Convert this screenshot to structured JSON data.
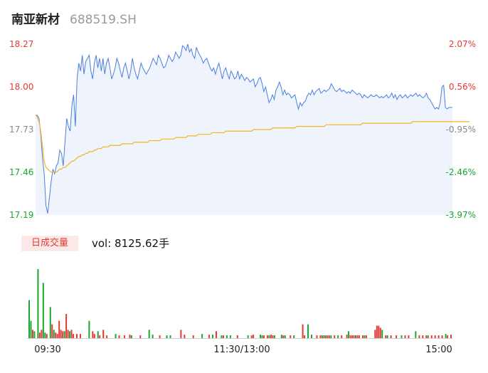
{
  "header": {
    "name": "南亚新材",
    "code": "688519.SH"
  },
  "volume_panel": {
    "tag": "日成交量",
    "readout": "vol: 8125.62手"
  },
  "colors": {
    "up": "#e53935",
    "down": "#1aa632",
    "price_line": "#4a7fe0",
    "avg_line": "#f5b324",
    "area": "#eef3fc",
    "neutral": "#888888"
  },
  "chart_data": [
    {
      "type": "line",
      "name": "intraday-price",
      "y_left_ticks": [
        "18.27",
        "18.00",
        "17.73",
        "17.46",
        "17.19"
      ],
      "y_right_ticks": [
        "2.07%",
        "0.56%",
        "-0.95%",
        "-2.46%",
        "-3.97%"
      ],
      "ylim": [
        17.19,
        18.27
      ],
      "prev_close": 17.9,
      "x_ticks": [
        "09:30",
        "11:30/13:00",
        "15:00"
      ],
      "minutes_total": 240,
      "price": [
        17.82,
        17.82,
        17.8,
        17.7,
        17.55,
        17.45,
        17.25,
        17.2,
        17.3,
        17.4,
        17.48,
        17.45,
        17.5,
        17.52,
        17.6,
        17.58,
        17.5,
        17.65,
        17.8,
        17.75,
        17.72,
        17.88,
        17.95,
        17.75,
        18.05,
        18.15,
        18.1,
        18.2,
        18.08,
        18.16,
        18.18,
        18.2,
        18.1,
        18.05,
        18.15,
        18.2,
        18.12,
        18.18,
        18.1,
        18.18,
        18.08,
        18.15,
        18.18,
        18.12,
        18.05,
        18.08,
        18.12,
        18.18,
        18.15,
        18.1,
        18.06,
        18.12,
        18.15,
        18.1,
        18.05,
        18.1,
        18.18,
        18.12,
        18.08,
        18.05,
        18.1,
        18.15,
        18.12,
        18.1,
        18.08,
        18.1,
        18.12,
        18.15,
        18.18,
        18.16,
        18.14,
        18.2,
        18.18,
        18.15,
        18.12,
        18.13,
        18.16,
        18.2,
        18.18,
        18.16,
        18.18,
        18.22,
        18.2,
        18.18,
        18.2,
        18.26,
        18.25,
        18.23,
        18.27,
        18.22,
        18.24,
        18.2,
        18.18,
        18.25,
        18.22,
        18.2,
        18.18,
        18.15,
        18.17,
        18.18,
        18.15,
        18.12,
        18.1,
        18.12,
        18.08,
        18.12,
        18.15,
        18.1,
        18.05,
        18.1,
        18.12,
        18.08,
        18.05,
        18.1,
        18.08,
        18.05,
        18.06,
        18.1,
        18.05,
        18.08,
        18.06,
        18.04,
        18.06,
        18.05,
        18.03,
        18.04,
        18.05,
        18.0,
        18.02,
        18.05,
        18.06,
        18.02,
        17.97,
        18.0,
        17.95,
        17.9,
        17.92,
        17.95,
        17.92,
        17.98,
        18.0,
        18.03,
        18.0,
        17.95,
        17.98,
        17.95,
        17.96,
        17.95,
        17.93,
        17.94,
        17.95,
        17.9,
        17.86,
        17.9,
        17.88,
        17.9,
        17.91,
        17.94,
        17.96,
        17.95,
        17.98,
        17.95,
        17.97,
        17.98,
        17.99,
        17.96,
        17.97,
        17.98,
        17.97,
        17.98,
        17.99,
        18.02,
        18.0,
        17.98,
        17.97,
        17.98,
        17.99,
        17.97,
        17.98,
        17.97,
        17.96,
        17.97,
        17.96,
        17.98,
        17.97,
        17.96,
        17.95,
        17.96,
        17.95,
        17.93,
        17.95,
        17.94,
        17.93,
        17.94,
        17.95,
        17.94,
        17.94,
        17.95,
        17.94,
        17.93,
        17.94,
        17.93,
        17.94,
        17.95,
        17.93,
        17.94,
        17.96,
        17.93,
        17.95,
        17.92,
        17.94,
        17.95,
        17.93,
        17.94,
        17.95,
        17.93,
        17.94,
        17.95,
        17.94,
        17.95,
        17.96,
        17.94,
        17.95,
        17.94,
        17.93,
        17.94,
        17.96,
        17.93,
        17.92,
        17.9,
        17.88,
        17.86,
        17.87,
        17.86,
        17.9,
        18.0,
        18.01,
        17.87,
        17.86,
        17.87,
        17.87,
        17.87
      ],
      "avg": [
        17.82,
        17.81,
        17.78,
        17.72,
        17.62,
        17.53,
        17.49,
        17.48,
        17.47,
        17.46,
        17.46,
        17.46,
        17.46,
        17.47,
        17.48,
        17.48,
        17.49,
        17.49,
        17.5,
        17.51,
        17.52,
        17.53,
        17.53,
        17.54,
        17.55,
        17.56,
        17.56,
        17.57,
        17.57,
        17.58,
        17.58,
        17.59,
        17.59,
        17.59,
        17.6,
        17.6,
        17.61,
        17.61,
        17.61,
        17.62,
        17.62,
        17.62,
        17.62,
        17.63,
        17.63,
        17.63,
        17.63,
        17.63,
        17.63,
        17.63,
        17.64,
        17.64,
        17.64,
        17.64,
        17.64,
        17.64,
        17.64,
        17.65,
        17.65,
        17.65,
        17.65,
        17.65,
        17.65,
        17.65,
        17.65,
        17.65,
        17.66,
        17.66,
        17.66,
        17.66,
        17.66,
        17.66,
        17.66,
        17.67,
        17.67,
        17.67,
        17.67,
        17.67,
        17.67,
        17.67,
        17.67,
        17.68,
        17.68,
        17.68,
        17.68,
        17.68,
        17.68,
        17.68,
        17.69,
        17.69,
        17.69,
        17.69,
        17.69,
        17.69,
        17.7,
        17.7,
        17.7,
        17.7,
        17.7,
        17.7,
        17.7,
        17.7,
        17.71,
        17.71,
        17.71,
        17.71,
        17.71,
        17.71,
        17.71,
        17.71,
        17.72,
        17.72,
        17.72,
        17.72,
        17.72,
        17.72,
        17.72,
        17.72,
        17.72,
        17.72,
        17.72,
        17.72,
        17.72,
        17.72,
        17.72,
        17.72,
        17.73,
        17.73,
        17.73,
        17.73,
        17.73,
        17.73,
        17.73,
        17.73,
        17.73,
        17.73,
        17.73,
        17.74,
        17.74,
        17.74,
        17.74,
        17.74,
        17.74,
        17.74,
        17.74,
        17.74,
        17.74,
        17.74,
        17.74,
        17.74,
        17.74,
        17.75,
        17.75,
        17.75,
        17.75,
        17.75,
        17.75,
        17.75,
        17.75,
        17.75,
        17.75,
        17.75,
        17.75,
        17.75,
        17.75,
        17.75,
        17.75,
        17.75,
        17.76,
        17.76,
        17.76,
        17.76,
        17.76,
        17.76,
        17.76,
        17.76,
        17.76,
        17.76,
        17.76,
        17.76,
        17.76,
        17.76,
        17.76,
        17.76,
        17.76,
        17.76,
        17.76,
        17.76,
        17.76,
        17.77,
        17.77,
        17.77,
        17.77,
        17.77,
        17.77,
        17.77,
        17.77,
        17.77,
        17.77,
        17.77,
        17.77,
        17.77,
        17.77,
        17.77,
        17.77,
        17.77,
        17.77,
        17.77,
        17.77,
        17.77,
        17.77,
        17.77,
        17.77,
        17.77,
        17.77,
        17.77,
        17.77,
        17.77,
        17.78,
        17.78,
        17.78,
        17.78,
        17.78,
        17.78,
        17.78,
        17.78,
        17.78,
        17.78,
        17.78,
        17.78,
        17.78,
        17.78,
        17.78,
        17.78,
        17.78,
        17.78,
        17.78,
        17.78,
        17.78,
        17.78,
        17.78,
        17.78,
        17.78,
        17.78,
        17.78,
        17.78,
        17.78,
        17.78,
        17.78,
        17.78,
        17.78,
        17.78
      ],
      "grid": false
    },
    {
      "type": "bar",
      "name": "volume",
      "bars": [
        {
          "i": 0,
          "v": 0.55,
          "dir": "down"
        },
        {
          "i": 1,
          "v": 0.25,
          "dir": "down"
        },
        {
          "i": 2,
          "v": 0.12,
          "dir": "up"
        },
        {
          "i": 3,
          "v": 0.1,
          "dir": "down"
        },
        {
          "i": 5,
          "v": 1.0,
          "dir": "down"
        },
        {
          "i": 6,
          "v": 0.08,
          "dir": "up"
        },
        {
          "i": 7,
          "v": 0.12,
          "dir": "up"
        },
        {
          "i": 8,
          "v": 0.8,
          "dir": "down"
        },
        {
          "i": 9,
          "v": 0.08,
          "dir": "down"
        },
        {
          "i": 10,
          "v": 0.06,
          "dir": "up"
        },
        {
          "i": 12,
          "v": 0.45,
          "dir": "down"
        },
        {
          "i": 13,
          "v": 0.2,
          "dir": "up"
        },
        {
          "i": 14,
          "v": 0.12,
          "dir": "down"
        },
        {
          "i": 15,
          "v": 0.08,
          "dir": "up"
        },
        {
          "i": 16,
          "v": 0.06,
          "dir": "up"
        },
        {
          "i": 17,
          "v": 0.25,
          "dir": "up"
        },
        {
          "i": 18,
          "v": 0.12,
          "dir": "up"
        },
        {
          "i": 19,
          "v": 0.1,
          "dir": "up"
        },
        {
          "i": 20,
          "v": 0.1,
          "dir": "down"
        },
        {
          "i": 21,
          "v": 0.35,
          "dir": "up"
        },
        {
          "i": 22,
          "v": 0.12,
          "dir": "up"
        },
        {
          "i": 23,
          "v": 0.1,
          "dir": "down"
        },
        {
          "i": 24,
          "v": 0.12,
          "dir": "up"
        },
        {
          "i": 25,
          "v": 0.06,
          "dir": "up"
        },
        {
          "i": 27,
          "v": 0.06,
          "dir": "up"
        },
        {
          "i": 29,
          "v": 0.06,
          "dir": "up"
        },
        {
          "i": 34,
          "v": 0.25,
          "dir": "down"
        },
        {
          "i": 36,
          "v": 0.1,
          "dir": "up"
        },
        {
          "i": 37,
          "v": 0.06,
          "dir": "up"
        },
        {
          "i": 39,
          "v": 0.1,
          "dir": "down"
        },
        {
          "i": 40,
          "v": 0.04,
          "dir": "up"
        },
        {
          "i": 42,
          "v": 0.12,
          "dir": "up"
        },
        {
          "i": 44,
          "v": 0.04,
          "dir": "up"
        },
        {
          "i": 49,
          "v": 0.06,
          "dir": "down"
        },
        {
          "i": 51,
          "v": 0.04,
          "dir": "up"
        },
        {
          "i": 54,
          "v": 0.04,
          "dir": "up"
        },
        {
          "i": 57,
          "v": 0.05,
          "dir": "up"
        },
        {
          "i": 58,
          "v": 0.04,
          "dir": "down"
        },
        {
          "i": 63,
          "v": 0.04,
          "dir": "up"
        },
        {
          "i": 68,
          "v": 0.12,
          "dir": "down"
        },
        {
          "i": 70,
          "v": 0.05,
          "dir": "down"
        },
        {
          "i": 74,
          "v": 0.04,
          "dir": "up"
        },
        {
          "i": 78,
          "v": 0.04,
          "dir": "down"
        },
        {
          "i": 80,
          "v": 0.04,
          "dir": "down"
        },
        {
          "i": 86,
          "v": 0.12,
          "dir": "up"
        },
        {
          "i": 88,
          "v": 0.05,
          "dir": "up"
        },
        {
          "i": 93,
          "v": 0.04,
          "dir": "up"
        },
        {
          "i": 98,
          "v": 0.06,
          "dir": "down"
        },
        {
          "i": 102,
          "v": 0.05,
          "dir": "up"
        },
        {
          "i": 104,
          "v": 0.05,
          "dir": "down"
        },
        {
          "i": 106,
          "v": 0.1,
          "dir": "up"
        },
        {
          "i": 109,
          "v": 0.04,
          "dir": "down"
        },
        {
          "i": 110,
          "v": 0.04,
          "dir": "up"
        },
        {
          "i": 112,
          "v": 0.04,
          "dir": "down"
        },
        {
          "i": 114,
          "v": 0.04,
          "dir": "down"
        },
        {
          "i": 118,
          "v": 0.04,
          "dir": "up"
        },
        {
          "i": 124,
          "v": 0.04,
          "dir": "down"
        },
        {
          "i": 126,
          "v": 0.04,
          "dir": "up"
        },
        {
          "i": 127,
          "v": 0.05,
          "dir": "up"
        },
        {
          "i": 131,
          "v": 0.05,
          "dir": "down"
        },
        {
          "i": 132,
          "v": 0.04,
          "dir": "down"
        },
        {
          "i": 133,
          "v": 0.04,
          "dir": "up"
        },
        {
          "i": 135,
          "v": 0.04,
          "dir": "up"
        },
        {
          "i": 136,
          "v": 0.04,
          "dir": "down"
        },
        {
          "i": 137,
          "v": 0.05,
          "dir": "up"
        },
        {
          "i": 138,
          "v": 0.04,
          "dir": "up"
        },
        {
          "i": 139,
          "v": 0.04,
          "dir": "down"
        },
        {
          "i": 143,
          "v": 0.05,
          "dir": "down"
        },
        {
          "i": 144,
          "v": 0.04,
          "dir": "up"
        },
        {
          "i": 145,
          "v": 0.04,
          "dir": "down"
        },
        {
          "i": 148,
          "v": 0.04,
          "dir": "up"
        },
        {
          "i": 150,
          "v": 0.04,
          "dir": "down"
        },
        {
          "i": 155,
          "v": 0.2,
          "dir": "up"
        },
        {
          "i": 156,
          "v": 0.04,
          "dir": "up"
        },
        {
          "i": 158,
          "v": 0.2,
          "dir": "down"
        },
        {
          "i": 160,
          "v": 0.05,
          "dir": "down"
        },
        {
          "i": 163,
          "v": 0.04,
          "dir": "up"
        },
        {
          "i": 165,
          "v": 0.04,
          "dir": "up"
        },
        {
          "i": 166,
          "v": 0.04,
          "dir": "down"
        },
        {
          "i": 167,
          "v": 0.04,
          "dir": "up"
        },
        {
          "i": 168,
          "v": 0.04,
          "dir": "down"
        },
        {
          "i": 169,
          "v": 0.04,
          "dir": "up"
        },
        {
          "i": 170,
          "v": 0.04,
          "dir": "up"
        },
        {
          "i": 171,
          "v": 0.04,
          "dir": "down"
        },
        {
          "i": 173,
          "v": 0.04,
          "dir": "up"
        },
        {
          "i": 175,
          "v": 0.04,
          "dir": "down"
        },
        {
          "i": 177,
          "v": 0.04,
          "dir": "up"
        },
        {
          "i": 180,
          "v": 0.05,
          "dir": "up"
        },
        {
          "i": 181,
          "v": 0.1,
          "dir": "down"
        },
        {
          "i": 182,
          "v": 0.04,
          "dir": "up"
        },
        {
          "i": 183,
          "v": 0.04,
          "dir": "up"
        },
        {
          "i": 184,
          "v": 0.04,
          "dir": "up"
        },
        {
          "i": 185,
          "v": 0.04,
          "dir": "down"
        },
        {
          "i": 186,
          "v": 0.04,
          "dir": "up"
        },
        {
          "i": 187,
          "v": 0.04,
          "dir": "up"
        },
        {
          "i": 189,
          "v": 0.04,
          "dir": "up"
        },
        {
          "i": 190,
          "v": 0.04,
          "dir": "down"
        },
        {
          "i": 191,
          "v": 0.04,
          "dir": "up"
        },
        {
          "i": 196,
          "v": 0.12,
          "dir": "up"
        },
        {
          "i": 197,
          "v": 0.18,
          "dir": "up"
        },
        {
          "i": 198,
          "v": 0.18,
          "dir": "up"
        },
        {
          "i": 199,
          "v": 0.15,
          "dir": "up"
        },
        {
          "i": 200,
          "v": 0.12,
          "dir": "down"
        },
        {
          "i": 202,
          "v": 0.04,
          "dir": "up"
        },
        {
          "i": 203,
          "v": 0.04,
          "dir": "down"
        },
        {
          "i": 205,
          "v": 0.04,
          "dir": "up"
        },
        {
          "i": 208,
          "v": 0.04,
          "dir": "up"
        },
        {
          "i": 211,
          "v": 0.04,
          "dir": "down"
        },
        {
          "i": 213,
          "v": 0.04,
          "dir": "up"
        },
        {
          "i": 215,
          "v": 0.04,
          "dir": "up"
        },
        {
          "i": 219,
          "v": 0.1,
          "dir": "down"
        },
        {
          "i": 221,
          "v": 0.04,
          "dir": "up"
        },
        {
          "i": 223,
          "v": 0.04,
          "dir": "up"
        },
        {
          "i": 225,
          "v": 0.04,
          "dir": "up"
        },
        {
          "i": 226,
          "v": 0.04,
          "dir": "down"
        },
        {
          "i": 228,
          "v": 0.04,
          "dir": "up"
        },
        {
          "i": 230,
          "v": 0.04,
          "dir": "up"
        },
        {
          "i": 232,
          "v": 0.04,
          "dir": "up"
        },
        {
          "i": 234,
          "v": 0.04,
          "dir": "up"
        },
        {
          "i": 236,
          "v": 0.06,
          "dir": "down"
        },
        {
          "i": 237,
          "v": 0.04,
          "dir": "up"
        },
        {
          "i": 239,
          "v": 0.05,
          "dir": "up"
        }
      ]
    }
  ]
}
